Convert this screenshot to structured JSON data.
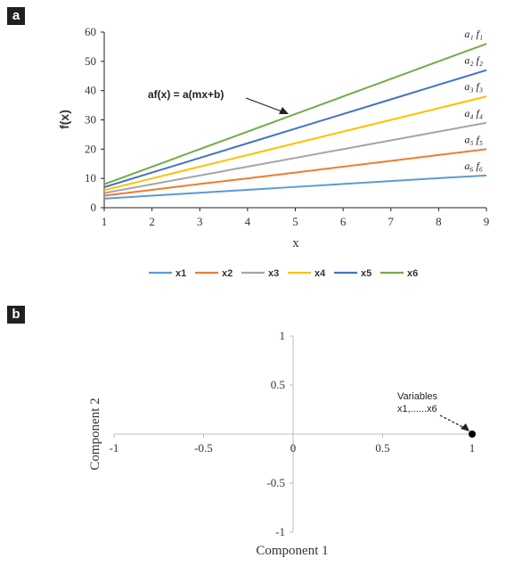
{
  "panels": {
    "a": "a",
    "b": "b"
  },
  "chart_data": [
    {
      "type": "line",
      "x": [
        1,
        2,
        3,
        4,
        5,
        6,
        7,
        8,
        9
      ],
      "xlabel": "x",
      "ylabel": "f(x)",
      "xlim": [
        1,
        9
      ],
      "ylim": [
        0,
        60
      ],
      "yticks": [
        0,
        10,
        20,
        30,
        40,
        50,
        60
      ],
      "grid": false,
      "legend_position": "bottom",
      "annotation": "af(x) = a(mx+b)",
      "series": [
        {
          "name": "x1",
          "color": "#5b9bd5",
          "values": [
            3.1,
            4.1,
            5.1,
            6.1,
            7.1,
            8.1,
            9.1,
            10.1,
            11.0
          ],
          "end_label": "a₆ f₆"
        },
        {
          "name": "x2",
          "color": "#ed7d31",
          "values": [
            4.1,
            6.1,
            8.1,
            10.0,
            12.0,
            14.0,
            16.0,
            18.0,
            20.0
          ],
          "end_label": "a₅ f₅"
        },
        {
          "name": "x3",
          "color": "#a5a5a5",
          "values": [
            5.0,
            8.0,
            11.0,
            14.0,
            17.0,
            20.0,
            23.0,
            26.0,
            29.0
          ],
          "end_label": "a₄ f₄"
        },
        {
          "name": "x4",
          "color": "#ffc000",
          "values": [
            6.0,
            10.0,
            14.0,
            18.0,
            22.0,
            26.0,
            30.0,
            34.0,
            38.0
          ],
          "end_label": "a₃ f₃"
        },
        {
          "name": "x5",
          "color": "#4472c4",
          "values": [
            7.0,
            12.0,
            17.0,
            22.0,
            27.0,
            32.0,
            37.0,
            42.0,
            47.0
          ],
          "end_label": "a₂ f₂"
        },
        {
          "name": "x6",
          "color": "#70ad47",
          "values": [
            8.0,
            14.0,
            20.0,
            26.0,
            32.0,
            38.0,
            44.0,
            50.0,
            56.0
          ],
          "end_label": "a₁ f₁"
        }
      ]
    },
    {
      "type": "scatter",
      "xlabel": "Component 1",
      "ylabel": "Component 2",
      "xlim": [
        -1,
        1
      ],
      "ylim": [
        -1,
        1
      ],
      "xticks": [
        "-1",
        "-0.5",
        "0",
        "0.5",
        "1"
      ],
      "yticks": [
        "1",
        "0.5",
        "0",
        "-0.5",
        "-1"
      ],
      "grid": false,
      "points": [
        {
          "x": 1,
          "y": 0
        }
      ],
      "annotation_line1": "Variables",
      "annotation_line2": "x1,......x6"
    }
  ]
}
